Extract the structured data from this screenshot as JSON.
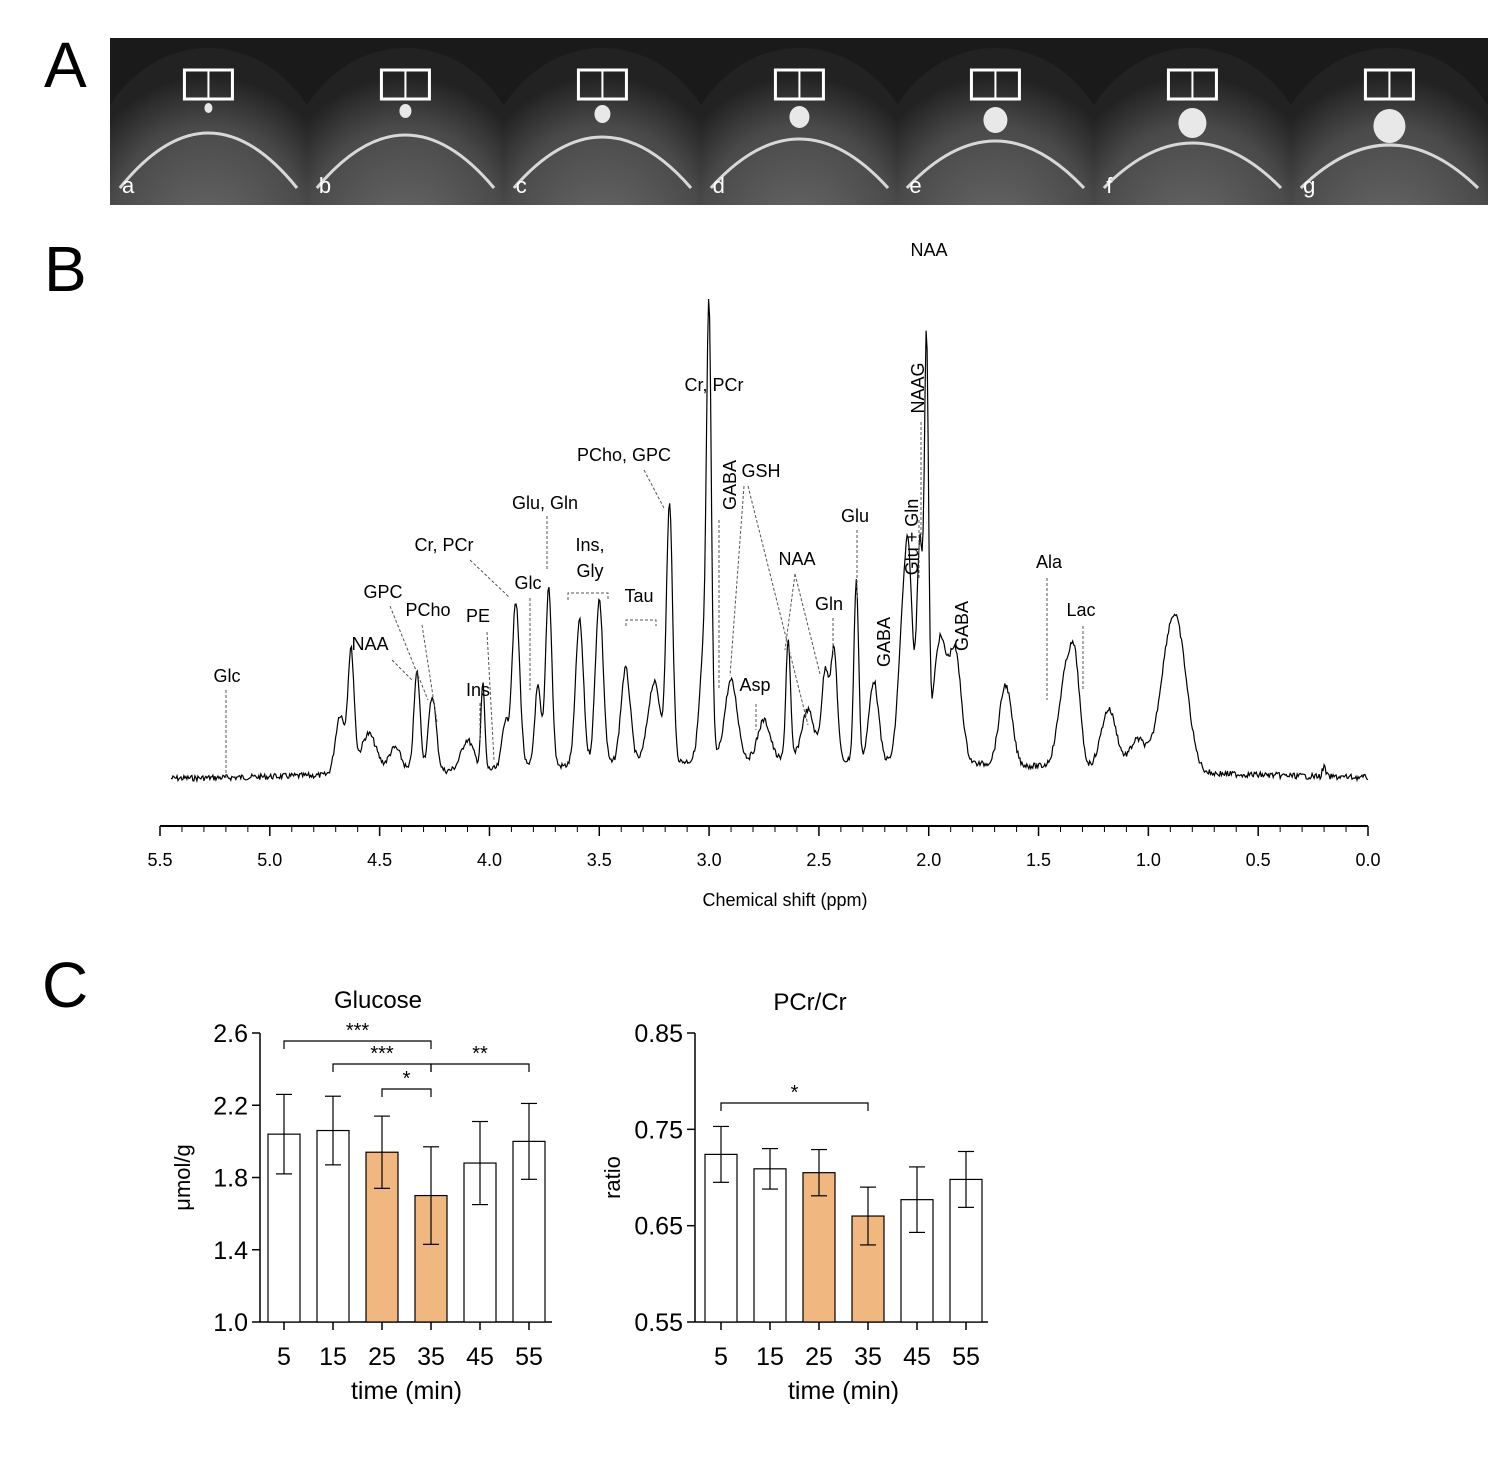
{
  "panels": {
    "A": "A",
    "B": "B",
    "C": "C"
  },
  "mri": {
    "labels": [
      "a",
      "b",
      "c",
      "d",
      "e",
      "f",
      "g"
    ],
    "tone": "#1a1a1a"
  },
  "spectrum": {
    "xlabel": "Chemical shift (ppm)",
    "ticks": [
      "5.5",
      "5.0",
      "4.5",
      "4.0",
      "3.5",
      "3.0",
      "2.5",
      "2.0",
      "1.5",
      "1.0",
      "0.5",
      "0.0"
    ],
    "annotations": {
      "glc1": "Glc",
      "naa1": "NAA",
      "gpc": "GPC",
      "pcho": "PCho",
      "crpcr1": "Cr, PCr",
      "pe": "PE",
      "ins1": "Ins",
      "glugln1": "Glu, Gln",
      "glc2": "Glc",
      "insgly1": "Ins,",
      "insgly2": "Gly",
      "tau": "Tau",
      "pchogpc": "PCho, GPC",
      "crpcr2": "Cr, PCr",
      "gaba1": "GABA",
      "gsh": "GSH",
      "asp": "Asp",
      "naa2": "NAA",
      "gln": "Gln",
      "glu": "Glu",
      "gaba2": "GABA",
      "gluplusgln": "Glu + Gln",
      "naag": "NAAG",
      "naa3": "NAA",
      "gaba3": "GABA",
      "ala": "Ala",
      "lac": "Lac"
    },
    "line_color": "#000000"
  },
  "chart_data": [
    {
      "type": "bar",
      "title": "Glucose",
      "ylabel": "μmol/g",
      "xlabel": "time (min)",
      "categories": [
        "5",
        "15",
        "25",
        "35",
        "45",
        "55"
      ],
      "values": [
        2.04,
        2.06,
        1.94,
        1.7,
        1.88,
        2.0
      ],
      "errors": [
        0.22,
        0.19,
        0.2,
        0.27,
        0.23,
        0.21
      ],
      "highlighted": [
        false,
        false,
        true,
        true,
        false,
        false
      ],
      "ylim": [
        1.0,
        2.6
      ],
      "yticks": [
        "1.0",
        "1.4",
        "1.8",
        "2.2",
        "2.6"
      ],
      "significance": [
        {
          "from": "5",
          "to": "35",
          "label": "***"
        },
        {
          "from": "15",
          "to": "35",
          "label": "***"
        },
        {
          "from": "35",
          "to": "55",
          "label": "**"
        },
        {
          "from": "25",
          "to": "35",
          "label": "*"
        }
      ]
    },
    {
      "type": "bar",
      "title": "PCr/Cr",
      "ylabel": "ratio",
      "xlabel": "time (min)",
      "categories": [
        "5",
        "15",
        "25",
        "35",
        "45",
        "55"
      ],
      "values": [
        0.724,
        0.709,
        0.705,
        0.66,
        0.677,
        0.698
      ],
      "errors": [
        0.029,
        0.021,
        0.024,
        0.03,
        0.034,
        0.029
      ],
      "highlighted": [
        false,
        false,
        true,
        true,
        false,
        false
      ],
      "ylim": [
        0.55,
        0.85
      ],
      "yticks": [
        "0.55",
        "0.65",
        "0.75",
        "0.85"
      ],
      "significance": [
        {
          "from": "5",
          "to": "35",
          "label": "*"
        }
      ]
    }
  ],
  "colors": {
    "highlight_bar": "#f0b880",
    "plain_bar": "#ffffff"
  }
}
